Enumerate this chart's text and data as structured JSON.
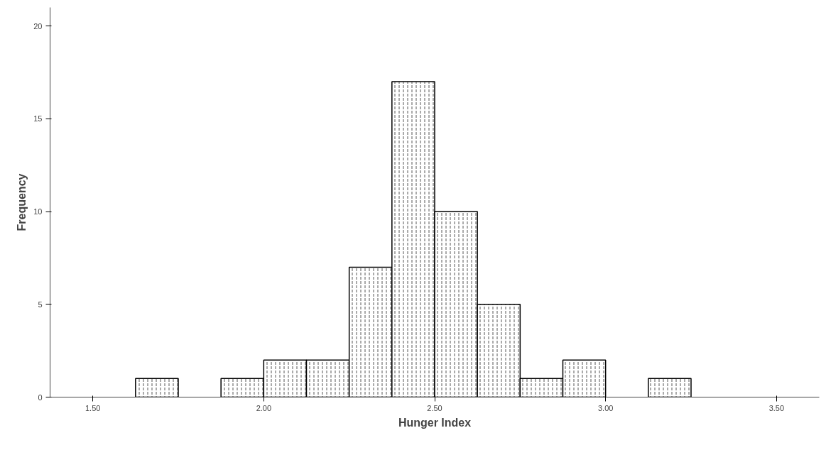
{
  "chart_data": {
    "type": "histogram",
    "xlabel": "Hunger Index",
    "ylabel": "Frequency",
    "bins": [
      1.625,
      1.75,
      1.875,
      2.0,
      2.125,
      2.25,
      2.375,
      2.5,
      2.625,
      2.75,
      2.875,
      3.0,
      3.125,
      3.25
    ],
    "values": [
      1,
      0,
      1,
      2,
      2,
      7,
      17,
      10,
      5,
      1,
      2,
      0,
      1
    ],
    "color": "#ffffff",
    "xlim": [
      1.375,
      3.625
    ],
    "xticks": [
      {
        "value": 1.5,
        "label": "1.50"
      },
      {
        "value": 2.0,
        "label": "2.00"
      },
      {
        "value": 2.5,
        "label": "2.50"
      },
      {
        "value": 3.0,
        "label": "3.00"
      },
      {
        "value": 3.5,
        "label": "3.50"
      }
    ],
    "ylim": [
      0,
      21
    ],
    "yticks": [
      0,
      5,
      10,
      15,
      20
    ],
    "grid": false
  }
}
